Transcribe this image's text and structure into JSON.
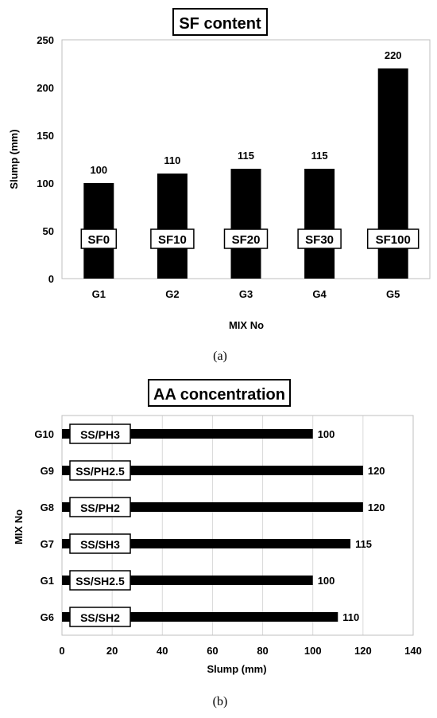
{
  "chart_data": [
    {
      "type": "bar",
      "title": "SF content",
      "xlabel": "MIX No",
      "ylabel": "Slump (mm)",
      "categories": [
        "G1",
        "G2",
        "G3",
        "G4",
        "G5"
      ],
      "values": [
        100,
        110,
        115,
        115,
        220
      ],
      "bar_labels": [
        "SF0",
        "SF10",
        "SF20",
        "SF30",
        "SF100"
      ],
      "ylim": [
        0,
        250
      ],
      "yticks": [
        "0",
        "50",
        "100",
        "150",
        "200",
        "250"
      ],
      "grid": false,
      "caption": "(a)"
    },
    {
      "type": "bar",
      "orientation": "horizontal",
      "title": "AA concentration",
      "xlabel": "Slump (mm)",
      "ylabel": "MIX No",
      "categories": [
        "G10",
        "G9",
        "G8",
        "G7",
        "G1",
        "G6"
      ],
      "values": [
        100,
        120,
        120,
        115,
        100,
        110
      ],
      "bar_labels": [
        "SS/PH3",
        "SS/PH2.5",
        "SS/PH2",
        "SS/SH3",
        "SS/SH2.5",
        "SS/SH2"
      ],
      "xlim": [
        0,
        140
      ],
      "xticks": [
        "0",
        "20",
        "40",
        "60",
        "80",
        "100",
        "120",
        "140"
      ],
      "grid": true,
      "caption": "(b)"
    }
  ],
  "colors": {
    "bar": "#000000",
    "grid": "#d9d9d9",
    "axis": "#bfbfbf"
  }
}
